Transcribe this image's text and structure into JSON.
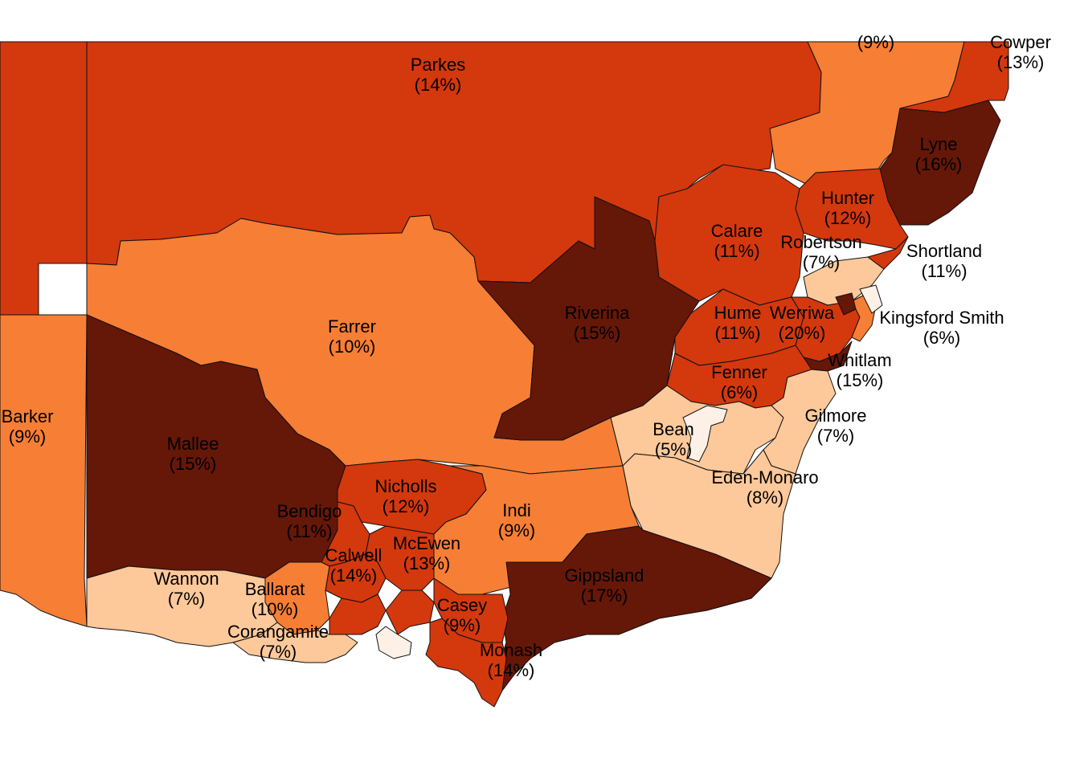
{
  "palette": {
    "lightest": "#fdf0e6",
    "light": "#fdc89a",
    "medium": "#f77e35",
    "strong": "#d4380d",
    "darkest": "#651708"
  },
  "electorates": [
    {
      "key": "parkes",
      "name": "Parkes",
      "value": "(14%)"
    },
    {
      "key": "cowper",
      "name": "Cowper",
      "value": "(13%)"
    },
    {
      "key": "ne-top",
      "name": "",
      "value": "(9%)"
    },
    {
      "key": "lyne",
      "name": "Lyne",
      "value": "(16%)"
    },
    {
      "key": "hunter",
      "name": "Hunter",
      "value": "(12%)"
    },
    {
      "key": "calare",
      "name": "Calare",
      "value": "(11%)"
    },
    {
      "key": "robertson",
      "name": "Robertson",
      "value": "(7%)"
    },
    {
      "key": "shortland",
      "name": "Shortland",
      "value": "(11%)"
    },
    {
      "key": "farrer",
      "name": "Farrer",
      "value": "(10%)"
    },
    {
      "key": "riverina",
      "name": "Riverina",
      "value": "(15%)"
    },
    {
      "key": "hume",
      "name": "Hume",
      "value": "(11%)"
    },
    {
      "key": "werriwa",
      "name": "Werriwa",
      "value": "(20%)"
    },
    {
      "key": "kingsford-smith",
      "name": "Kingsford Smith",
      "value": "(6%)"
    },
    {
      "key": "whitlam",
      "name": "Whitlam",
      "value": "(15%)"
    },
    {
      "key": "fenner",
      "name": "Fenner",
      "value": "(6%)"
    },
    {
      "key": "barker",
      "name": "Barker",
      "value": "(9%)"
    },
    {
      "key": "mallee",
      "name": "Mallee",
      "value": "(15%)"
    },
    {
      "key": "bean",
      "name": "Bean",
      "value": "(5%)"
    },
    {
      "key": "gilmore",
      "name": "Gilmore",
      "value": "(7%)"
    },
    {
      "key": "eden-monaro",
      "name": "Eden-Monaro",
      "value": "(8%)"
    },
    {
      "key": "nicholls",
      "name": "Nicholls",
      "value": "(12%)"
    },
    {
      "key": "indi",
      "name": "Indi",
      "value": "(9%)"
    },
    {
      "key": "bendigo",
      "name": "Bendigo",
      "value": "(11%)"
    },
    {
      "key": "calwell",
      "name": "Calwell",
      "value": "(14%)"
    },
    {
      "key": "mcewen",
      "name": "McEwen",
      "value": "(13%)"
    },
    {
      "key": "gippsland",
      "name": "Gippsland",
      "value": "(17%)"
    },
    {
      "key": "wannon",
      "name": "Wannon",
      "value": "(7%)"
    },
    {
      "key": "ballarat",
      "name": "Ballarat",
      "value": "(10%)"
    },
    {
      "key": "casey",
      "name": "Casey",
      "value": "(9%)"
    },
    {
      "key": "corangamite",
      "name": "Corangamite",
      "value": "(7%)"
    },
    {
      "key": "monash",
      "name": "Monash",
      "value": "(14%)"
    }
  ]
}
